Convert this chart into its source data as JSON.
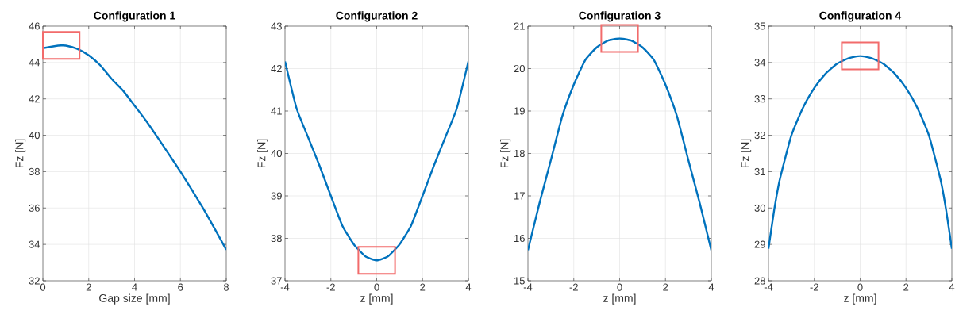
{
  "chart_data": [
    {
      "type": "line",
      "title": "Configuration 1",
      "xlabel": "Gap size [mm]",
      "ylabel": "Fz [N]",
      "xlim": [
        0,
        8
      ],
      "ylim": [
        32,
        46
      ],
      "xticks": [
        0,
        2,
        4,
        6,
        8
      ],
      "yticks": [
        32,
        34,
        36,
        38,
        40,
        42,
        44,
        46
      ],
      "grid": true,
      "series": [
        {
          "color": "#0072bd",
          "x": [
            0,
            0.5,
            0.8,
            1,
            1.5,
            2,
            2.5,
            3,
            3.5,
            4,
            4.5,
            5,
            5.5,
            6,
            6.5,
            7,
            7.5,
            8
          ],
          "values": [
            44.79,
            44.9,
            44.94,
            44.93,
            44.75,
            44.4,
            43.85,
            43.1,
            42.45,
            41.63,
            40.8,
            39.89,
            38.95,
            38.0,
            37.0,
            35.96,
            34.85,
            33.7
          ]
        }
      ]
    },
    {
      "type": "line",
      "title": "Configuration 2",
      "xlabel": "z [mm]",
      "ylabel": "Fz [N]",
      "xlim": [
        -4,
        4
      ],
      "ylim": [
        37,
        43
      ],
      "xticks": [
        -4,
        -2,
        0,
        2,
        4
      ],
      "yticks": [
        37,
        38,
        39,
        40,
        41,
        42,
        43
      ],
      "grid": true,
      "series": [
        {
          "color": "#0072bd",
          "x": [
            -4,
            -3.5,
            -3,
            -2.5,
            -2,
            -1.5,
            -1,
            -0.5,
            0,
            0.5,
            1,
            1.5,
            2,
            2.5,
            3,
            3.5,
            4
          ],
          "values": [
            42.17,
            41.07,
            40.39,
            39.72,
            39.0,
            38.3,
            37.86,
            37.58,
            37.48,
            37.58,
            37.86,
            38.3,
            39.0,
            39.72,
            40.39,
            41.07,
            42.17
          ]
        }
      ]
    },
    {
      "type": "line",
      "title": "Configuration 3",
      "xlabel": "z [mm]",
      "ylabel": "Fz [N]",
      "xlim": [
        -4,
        4
      ],
      "ylim": [
        15,
        21
      ],
      "xticks": [
        -4,
        -2,
        0,
        2,
        4
      ],
      "yticks": [
        15,
        16,
        17,
        18,
        19,
        20,
        21
      ],
      "grid": true,
      "series": [
        {
          "color": "#0072bd",
          "x": [
            -4,
            -3.5,
            -3,
            -2.5,
            -2,
            -1.5,
            -1,
            -0.5,
            0,
            0.5,
            1,
            1.5,
            2,
            2.5,
            3,
            3.5,
            4
          ],
          "values": [
            15.72,
            16.82,
            17.84,
            18.88,
            19.62,
            20.2,
            20.5,
            20.66,
            20.71,
            20.66,
            20.5,
            20.2,
            19.62,
            18.88,
            17.84,
            16.82,
            15.72
          ]
        }
      ]
    },
    {
      "type": "line",
      "title": "Configuration 4",
      "xlabel": "z [mm]",
      "ylabel": "Fz [N]",
      "xlim": [
        -4,
        4
      ],
      "ylim": [
        28,
        35
      ],
      "xticks": [
        -4,
        -2,
        0,
        2,
        4
      ],
      "yticks": [
        28,
        29,
        30,
        31,
        32,
        33,
        34,
        35
      ],
      "grid": true,
      "series": [
        {
          "color": "#0072bd",
          "x": [
            -4,
            -3.75,
            -3.5,
            -3,
            -2.5,
            -2,
            -1.5,
            -1,
            -0.5,
            0,
            0.5,
            1,
            1.5,
            2,
            2.5,
            3,
            3.5,
            3.75,
            4
          ],
          "values": [
            28.88,
            29.95,
            30.8,
            32.0,
            32.75,
            33.3,
            33.7,
            33.97,
            34.12,
            34.18,
            34.12,
            33.97,
            33.7,
            33.3,
            32.75,
            32.0,
            30.8,
            29.95,
            28.88
          ]
        }
      ]
    }
  ]
}
